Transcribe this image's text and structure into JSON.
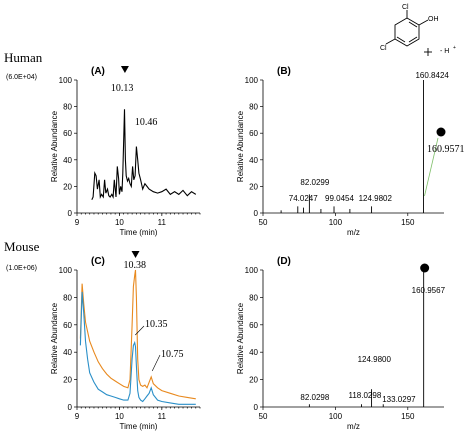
{
  "figure": {
    "row_labels": [
      "Human",
      "Mouse"
    ],
    "scale_labels": [
      "(6.0E+04)",
      "(1.0E+06)"
    ],
    "structure": {
      "atom_labels": [
        "Cl",
        "Cl",
        "OH"
      ],
      "ion_label": "- H",
      "ion_charge": "+"
    }
  },
  "chart_data": [
    {
      "panel": "(A)",
      "type": "line",
      "xlabel": "Time (min)",
      "ylabel": "Relative Abundance",
      "xlim": [
        9,
        11.9
      ],
      "ylim": [
        0,
        100
      ],
      "xticks": [
        9,
        10,
        11
      ],
      "yticks": [
        0,
        20,
        40,
        60,
        80,
        100
      ],
      "series": [
        {
          "color": "#000000",
          "x": [
            9.35,
            9.38,
            9.42,
            9.45,
            9.48,
            9.52,
            9.55,
            9.58,
            9.62,
            9.65,
            9.68,
            9.72,
            9.75,
            9.78,
            9.82,
            9.85,
            9.88,
            9.92,
            9.95,
            9.98,
            10.0,
            10.03,
            10.06,
            10.08,
            10.1,
            10.12,
            10.14,
            10.16,
            10.19,
            10.22,
            10.25,
            10.28,
            10.31,
            10.34,
            10.37,
            10.4,
            10.43,
            10.46,
            10.5,
            10.55,
            10.6,
            10.65,
            10.7,
            10.8,
            10.9,
            11.0,
            11.1,
            11.2,
            11.3,
            11.4,
            11.5,
            11.6,
            11.7,
            11.8
          ],
          "y": [
            10,
            12,
            30,
            28,
            18,
            25,
            12,
            14,
            12,
            25,
            15,
            18,
            13,
            12,
            14,
            12,
            25,
            12,
            35,
            26,
            14,
            20,
            16,
            30,
            55,
            78,
            40,
            28,
            24,
            26,
            22,
            20,
            35,
            25,
            28,
            50,
            40,
            30,
            25,
            18,
            22,
            20,
            18,
            16,
            15,
            16,
            18,
            14,
            16,
            14,
            17,
            13,
            16,
            14
          ]
        }
      ],
      "annotations": [
        {
          "text": "10.13",
          "x": 10.13,
          "marker": "inverted-triangle"
        },
        {
          "text": "10.46",
          "x": 10.46
        }
      ]
    },
    {
      "panel": "(B)",
      "type": "bar",
      "xlabel": "m/z",
      "ylabel": "Relative Abundance",
      "xlim": [
        50,
        175
      ],
      "ylim": [
        0,
        100
      ],
      "xticks": [
        50,
        100,
        150
      ],
      "yticks": [
        0,
        20,
        40,
        60,
        80,
        100
      ],
      "peaks": [
        {
          "mz": 62.5,
          "intensity": 2
        },
        {
          "mz": 74.0247,
          "intensity": 5
        },
        {
          "mz": 78.0,
          "intensity": 4
        },
        {
          "mz": 82.0299,
          "intensity": 14
        },
        {
          "mz": 90.0,
          "intensity": 3
        },
        {
          "mz": 99.0454,
          "intensity": 5
        },
        {
          "mz": 110.0,
          "intensity": 3
        },
        {
          "mz": 124.9802,
          "intensity": 5
        },
        {
          "mz": 160.8424,
          "intensity": 100
        }
      ],
      "labels": [
        "74.0247",
        "82.0299",
        "99.0454",
        "124.9802",
        "160.8424"
      ],
      "callout": {
        "text": "160.9571",
        "marker": "filled-circle"
      }
    },
    {
      "panel": "(C)",
      "type": "line",
      "xlabel": "Time (min)",
      "ylabel": "Relative Abundance",
      "xlim": [
        9,
        11.9
      ],
      "ylim": [
        0,
        100
      ],
      "xticks": [
        9,
        10,
        11
      ],
      "yticks": [
        0,
        20,
        40,
        60,
        80,
        100
      ],
      "series": [
        {
          "color": "#e8891e",
          "x": [
            9.08,
            9.12,
            9.16,
            9.2,
            9.25,
            9.3,
            9.4,
            9.5,
            9.6,
            9.7,
            9.8,
            9.9,
            10.0,
            10.1,
            10.2,
            10.25,
            10.3,
            10.33,
            10.36,
            10.38,
            10.4,
            10.43,
            10.46,
            10.5,
            10.55,
            10.6,
            10.65,
            10.7,
            10.75,
            10.8,
            10.9,
            11.0,
            11.2,
            11.4,
            11.6,
            11.8
          ],
          "y": [
            50,
            90,
            75,
            62,
            55,
            48,
            40,
            33,
            28,
            24,
            21,
            19,
            17,
            15,
            14,
            20,
            60,
            88,
            96,
            100,
            80,
            35,
            20,
            16,
            15,
            16,
            14,
            18,
            22,
            17,
            14,
            12,
            10,
            8,
            7,
            6
          ]
        },
        {
          "color": "#2a8fc8",
          "x": [
            9.08,
            9.12,
            9.16,
            9.2,
            9.25,
            9.3,
            9.4,
            9.5,
            9.6,
            9.7,
            9.8,
            9.9,
            10.0,
            10.1,
            10.2,
            10.25,
            10.3,
            10.33,
            10.36,
            10.38,
            10.4,
            10.43,
            10.46,
            10.5,
            10.55,
            10.6,
            10.65,
            10.7,
            10.75,
            10.8,
            10.9,
            11.0,
            11.2,
            11.4,
            11.6,
            11.8
          ],
          "y": [
            45,
            84,
            68,
            48,
            35,
            25,
            18,
            13,
            11,
            9,
            8,
            7,
            6,
            5,
            5,
            10,
            35,
            45,
            47,
            44,
            30,
            12,
            7,
            5,
            4,
            6,
            8,
            10,
            14,
            9,
            5,
            4,
            3,
            2,
            2,
            2
          ]
        }
      ],
      "annotations": [
        {
          "text": "10.38",
          "x": 10.38,
          "marker": "inverted-triangle"
        },
        {
          "text": "10.35",
          "x": 10.35
        },
        {
          "text": "10.75",
          "x": 10.75
        }
      ]
    },
    {
      "panel": "(D)",
      "type": "bar",
      "xlabel": "m/z",
      "ylabel": "Relative Abundance",
      "xlim": [
        50,
        175
      ],
      "ylim": [
        0,
        100
      ],
      "xticks": [
        50,
        100,
        150
      ],
      "yticks": [
        0,
        20,
        40,
        60,
        80,
        100
      ],
      "peaks": [
        {
          "mz": 82.0298,
          "intensity": 2
        },
        {
          "mz": 118.0298,
          "intensity": 2
        },
        {
          "mz": 124.98,
          "intensity": 13
        },
        {
          "mz": 133.0297,
          "intensity": 2
        },
        {
          "mz": 160.9567,
          "intensity": 100
        }
      ],
      "labels": [
        "82.0298",
        "118.0298",
        "124.9800",
        "133.0297",
        "160.9567"
      ],
      "callout": {
        "text": "",
        "marker": "filled-circle"
      }
    }
  ]
}
